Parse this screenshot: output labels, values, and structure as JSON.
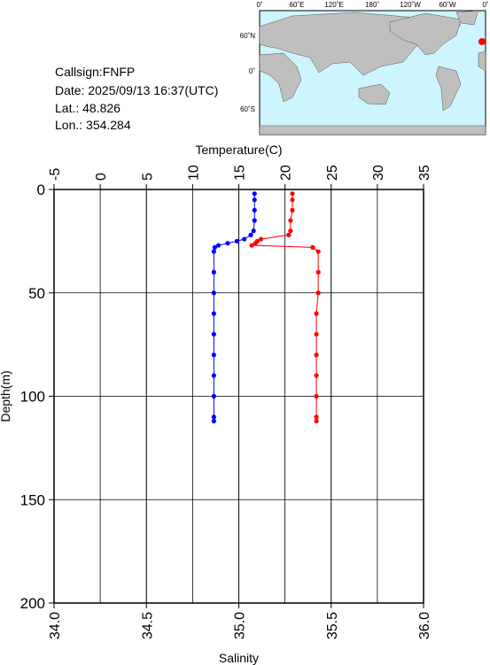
{
  "info": {
    "callsign": "Callsign:FNFP",
    "date": "Date:  2025/09/13 16:37(UTC)",
    "lat": "Lat.:  48.826",
    "lon": "Lon.:  354.284"
  },
  "map": {
    "lon_labels": [
      "0˚",
      "60˚E",
      "120˚E",
      "180˚",
      "120˚W",
      "60˚W",
      "0˚"
    ],
    "lat_labels": [
      "60˚N",
      "0˚",
      "60˚S"
    ]
  },
  "chart_data": {
    "type": "profile",
    "x_label": "Salinity",
    "x2_label": "Temperature(C)",
    "y_label": "Depth(m)",
    "xlim": [
      34,
      36
    ],
    "xticks": [
      {
        "value": 34,
        "label": "34.0"
      },
      {
        "value": 34.5,
        "label": "34.5"
      },
      {
        "value": 35,
        "label": "35.0"
      },
      {
        "value": 35.5,
        "label": "35.5"
      },
      {
        "value": 36,
        "label": "36.0"
      }
    ],
    "x2lim": [
      -5,
      35
    ],
    "x2ticks": [
      -5,
      0,
      5,
      10,
      15,
      20,
      25,
      30,
      35
    ],
    "ylim": [
      0,
      200
    ],
    "yticks": [
      0,
      50,
      100,
      150,
      200
    ],
    "y_inverted": true,
    "grid": true,
    "depth": [
      2,
      5,
      10,
      15,
      20,
      22,
      24,
      25,
      26,
      27,
      28,
      30,
      40,
      50,
      60,
      70,
      80,
      90,
      100,
      110,
      112
    ],
    "series": [
      {
        "name": "Temperature",
        "axis": "x2",
        "color": "#0000ff",
        "values": [
          16.7,
          16.7,
          16.7,
          16.7,
          16.6,
          16.3,
          15.6,
          14.8,
          13.8,
          12.8,
          12.4,
          12.3,
          12.3,
          12.3,
          12.3,
          12.3,
          12.3,
          12.3,
          12.3,
          12.3,
          12.3
        ]
      },
      {
        "name": "Salinity",
        "axis": "x",
        "color": "#ff0000",
        "values": [
          35.29,
          35.29,
          35.29,
          35.28,
          35.28,
          35.27,
          35.12,
          35.1,
          35.09,
          35.07,
          35.4,
          35.43,
          35.43,
          35.43,
          35.42,
          35.42,
          35.42,
          35.42,
          35.42,
          35.42,
          35.42
        ]
      }
    ]
  }
}
